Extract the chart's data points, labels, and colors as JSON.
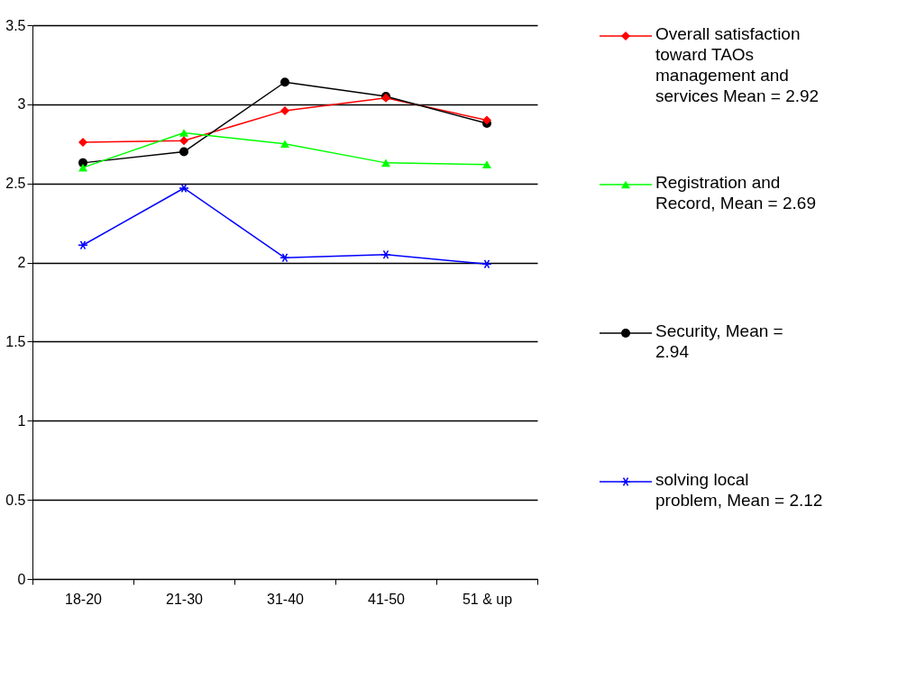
{
  "chart_data": {
    "type": "line",
    "categories": [
      "18-20",
      "21-30",
      "31-40",
      "41-50",
      "51 & up"
    ],
    "series": [
      {
        "name": "Overall satisfaction toward TAOs management and services Mean = 2.92",
        "color": "#ff0000",
        "marker": "diamond",
        "values": [
          2.76,
          2.77,
          2.96,
          3.04,
          2.9
        ]
      },
      {
        "name": "Registration and Record, Mean = 2.69",
        "color": "#00ff00",
        "marker": "triangle",
        "values": [
          2.6,
          2.82,
          2.75,
          2.63,
          2.62
        ]
      },
      {
        "name": "Security, Mean = 2.94",
        "color": "#000000",
        "marker": "circle",
        "values": [
          2.63,
          2.7,
          3.14,
          3.05,
          2.88
        ]
      },
      {
        "name": "solving local problem, Mean = 2.12",
        "color": "#0000ff",
        "marker": "cross",
        "values": [
          2.11,
          2.47,
          2.03,
          2.05,
          1.99
        ]
      }
    ],
    "ylim": [
      0,
      3.5
    ],
    "yticks": [
      0,
      0.5,
      1,
      1.5,
      2,
      2.5,
      3,
      3.5
    ],
    "grid": "y",
    "legend": "right",
    "line_style": "solid"
  }
}
